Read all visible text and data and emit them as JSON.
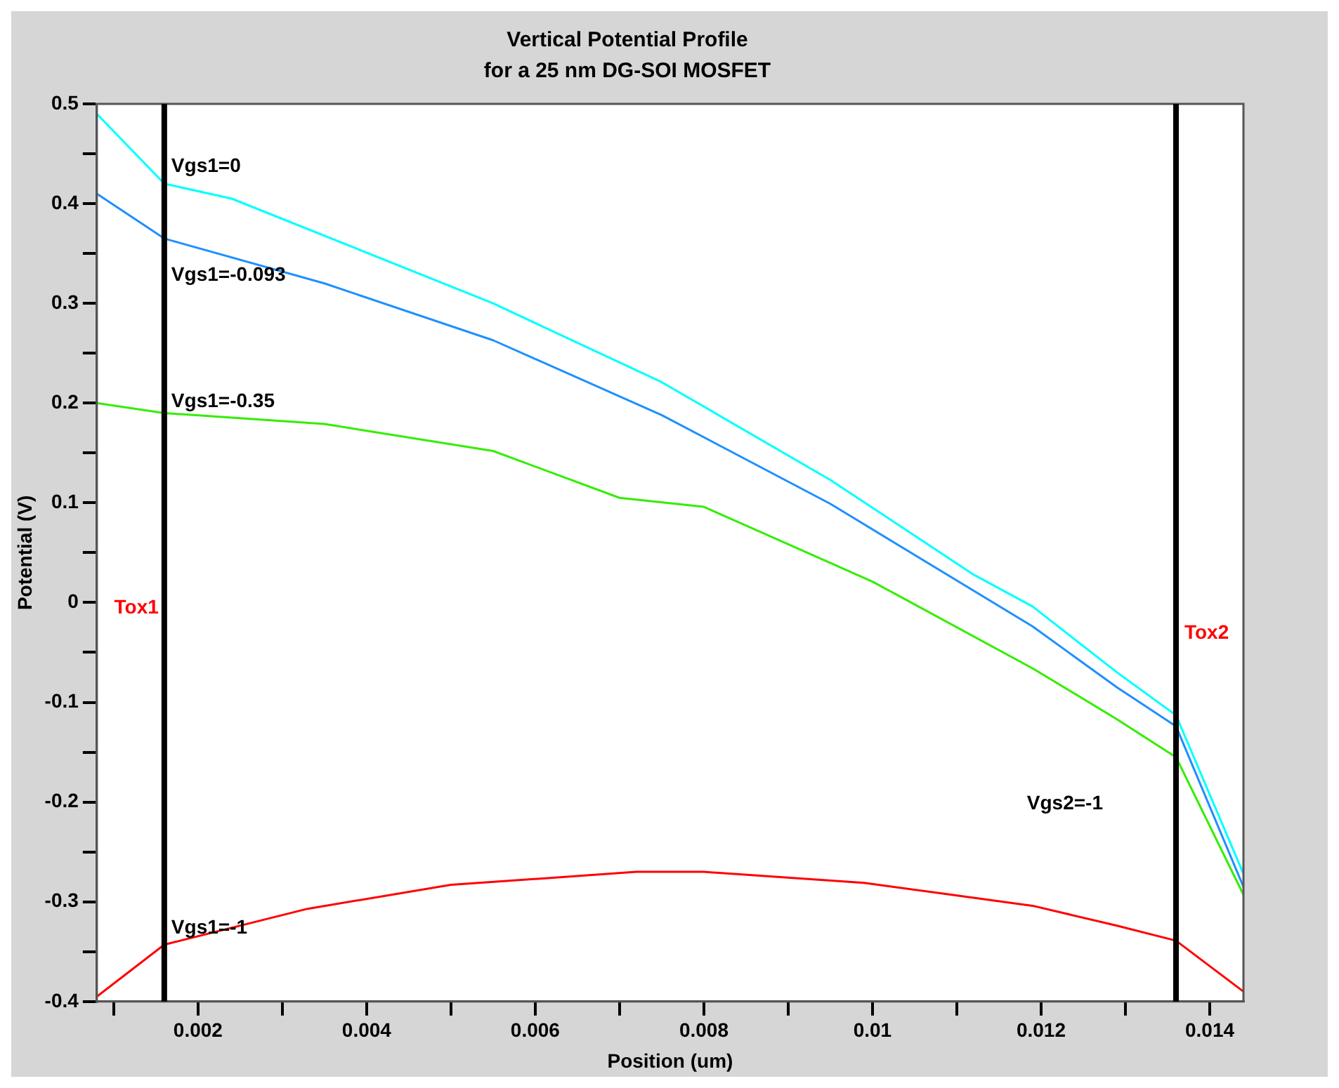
{
  "chart_data": {
    "type": "line",
    "title": "Vertical Potential Profile",
    "subtitle": "for a 25 nm DG-SOI MOSFET",
    "xlabel": "Position (um)",
    "ylabel": "Potential (V)",
    "xlim": [
      0.0008,
      0.0144
    ],
    "ylim": [
      -0.4,
      0.5
    ],
    "xticks": [
      {
        "value": 0.001,
        "label": null
      },
      0.002,
      {
        "value": 0.003,
        "label": null
      },
      0.004,
      {
        "value": 0.005,
        "label": null
      },
      0.006,
      {
        "value": 0.007,
        "label": null
      },
      0.008,
      {
        "value": 0.009,
        "label": null
      },
      0.01,
      {
        "value": 0.011,
        "label": null
      },
      0.012,
      {
        "value": 0.013,
        "label": null
      },
      0.014
    ],
    "yticks": [
      -0.4,
      {
        "value": -0.35,
        "label": null
      },
      -0.3,
      {
        "value": -0.25,
        "label": null
      },
      -0.2,
      {
        "value": -0.15,
        "label": null
      },
      -0.1,
      {
        "value": -0.05,
        "label": null
      },
      0,
      {
        "value": 0.05,
        "label": null
      },
      0.1,
      {
        "value": 0.15,
        "label": null
      },
      0.2,
      {
        "value": 0.25,
        "label": null
      },
      0.3,
      {
        "value": 0.35,
        "label": null
      },
      0.4,
      {
        "value": 0.45,
        "label": null
      },
      0.5
    ],
    "grid": false,
    "legend": false,
    "marker": "none",
    "line_style": "solid",
    "series": [
      {
        "name": "Vgs1=0",
        "color": "#00ffff",
        "x": [
          0.0008,
          0.0016,
          0.0024,
          0.0055,
          0.0075,
          0.0095,
          0.0112,
          0.0119,
          0.0129,
          0.0136,
          0.0144
        ],
        "values": [
          0.49,
          0.42,
          0.405,
          0.3,
          0.221,
          0.123,
          0.028,
          -0.004,
          -0.07,
          -0.113,
          -0.272
        ]
      },
      {
        "name": "Vgs1=-0.093",
        "color": "#1e90ff",
        "x": [
          0.0008,
          0.0016,
          0.0035,
          0.0055,
          0.0075,
          0.0095,
          0.0119,
          0.0129,
          0.0136,
          0.0144
        ],
        "values": [
          0.41,
          0.365,
          0.32,
          0.263,
          0.188,
          0.099,
          -0.024,
          -0.085,
          -0.124,
          -0.285
        ]
      },
      {
        "name": "Vgs1=-0.35",
        "color": "#33ee00",
        "x": [
          0.0008,
          0.0016,
          0.0035,
          0.0055,
          0.007,
          0.008,
          0.01,
          0.0119,
          0.0129,
          0.0136,
          0.0144
        ],
        "values": [
          0.2,
          0.19,
          0.179,
          0.152,
          0.105,
          0.096,
          0.021,
          -0.066,
          -0.117,
          -0.155,
          -0.293
        ]
      },
      {
        "name": "Vgs1=-1",
        "color": "#ff0000",
        "x": [
          0.0008,
          0.0016,
          0.0033,
          0.005,
          0.0072,
          0.008,
          0.0099,
          0.0119,
          0.0129,
          0.0136,
          0.0144
        ],
        "values": [
          -0.395,
          -0.343,
          -0.307,
          -0.283,
          -0.27,
          -0.27,
          -0.281,
          -0.304,
          -0.324,
          -0.339,
          -0.39
        ]
      }
    ],
    "ref_lines": [
      {
        "axis": "x",
        "value": 0.0016,
        "label": "Tox1",
        "color": "#000000"
      },
      {
        "axis": "x",
        "value": 0.0136,
        "label": "Tox2",
        "color": "#000000"
      }
    ],
    "annotations": [
      "Vgs2=-1"
    ]
  }
}
